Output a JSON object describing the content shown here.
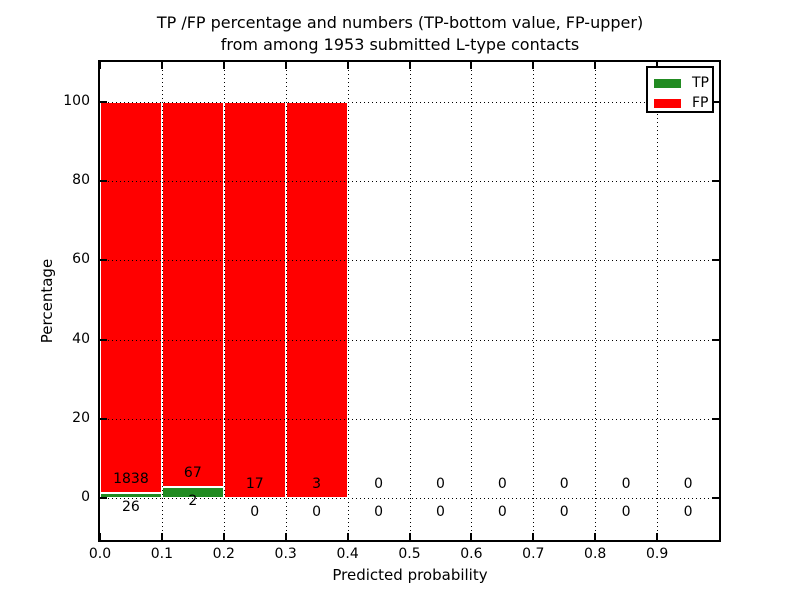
{
  "title": {
    "line1": "TP /FP percentage and numbers (TP-bottom value, FP-upper)",
    "line2": "from among 1953 submitted L-type contacts"
  },
  "axes": {
    "xlabel": "Predicted probability",
    "ylabel": "Percentage",
    "x_tick_labels": [
      "0.0",
      "0.1",
      "0.2",
      "0.3",
      "0.4",
      "0.5",
      "0.6",
      "0.7",
      "0.8",
      "0.9"
    ],
    "y_tick_labels": [
      "0",
      "20",
      "40",
      "60",
      "80",
      "100"
    ]
  },
  "legend": {
    "entries": [
      {
        "label": "TP",
        "color": "#228b22"
      },
      {
        "label": "FP",
        "color": "#ff0000"
      }
    ],
    "position": "upper right"
  },
  "chart_data": {
    "type": "bar",
    "stacked": true,
    "bars_show": "percent_within_bin",
    "title": "TP /FP percentage and numbers (TP-bottom value, FP-upper) from among 1953 submitted L-type contacts",
    "xlabel": "Predicted probability",
    "ylabel": "Percentage",
    "total_contacts": 1953,
    "bin_edges": [
      0.0,
      0.1,
      0.2,
      0.3,
      0.4,
      0.5,
      0.6,
      0.7,
      0.8,
      0.9,
      1.0
    ],
    "series": [
      {
        "name": "TP",
        "color": "#228b22",
        "values": [
          26,
          2,
          0,
          0,
          0,
          0,
          0,
          0,
          0,
          0
        ]
      },
      {
        "name": "FP",
        "color": "#ff0000",
        "values": [
          1838,
          67,
          17,
          3,
          0,
          0,
          0,
          0,
          0,
          0
        ]
      }
    ],
    "x_ticks": [
      0.0,
      0.1,
      0.2,
      0.3,
      0.4,
      0.5,
      0.6,
      0.7,
      0.8,
      0.9
    ],
    "y_ticks": [
      0,
      20,
      40,
      60,
      80,
      100
    ],
    "xlim": [
      0,
      1
    ],
    "ylim": [
      -10.5,
      110
    ],
    "grid": "dotted, both axes, drawn over bars",
    "bar_edge_color": "#ffffff",
    "label_color": "#000000",
    "legend_position": "upper right"
  }
}
